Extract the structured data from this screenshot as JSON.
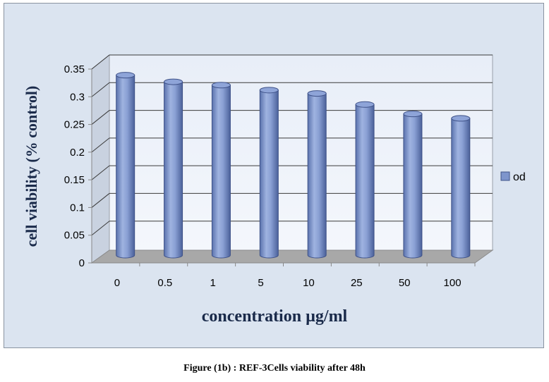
{
  "chart_data": {
    "type": "bar",
    "categories": [
      "0",
      "0.5",
      "1",
      "5",
      "10",
      "25",
      "50",
      "100"
    ],
    "series": [
      {
        "name": "od",
        "values": [
          0.325,
          0.313,
          0.307,
          0.298,
          0.292,
          0.272,
          0.255,
          0.247
        ],
        "color": "#7e95cc"
      }
    ],
    "ylabel": "cell viability (% control)",
    "xlabel": "concentration µg/ml",
    "ylim": [
      0,
      0.35
    ],
    "yticks": [
      "0",
      "0.05",
      "0.1",
      "0.15",
      "0.2",
      "0.25",
      "0.3",
      "0.35"
    ],
    "grid": true,
    "legend_position": "right",
    "style": "3d-cylinder"
  },
  "caption": "Figure (1b) : REF-3Cells viability after 48h"
}
